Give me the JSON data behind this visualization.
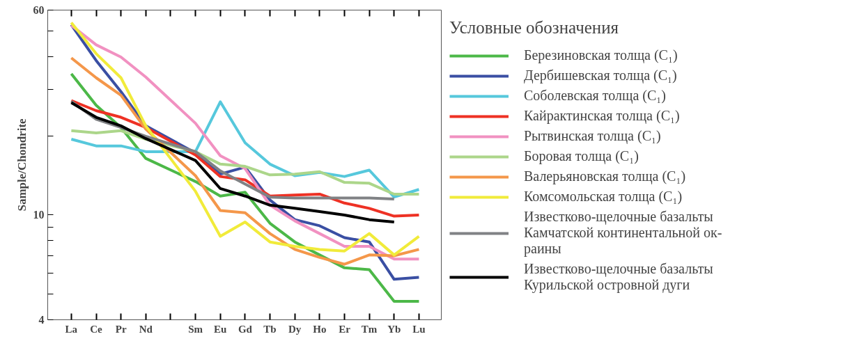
{
  "chart_data": {
    "type": "line",
    "ylabel": "Sample/Chondrite",
    "legend_title": "Условные обозначения",
    "legend": "right",
    "log": "y",
    "grid": false,
    "categories": [
      "La",
      "Ce",
      "Pr",
      "Nd",
      null,
      "Sm",
      "Eu",
      "Gd",
      "Tb",
      "Dy",
      "Ho",
      "Er",
      "Tm",
      "Yb",
      "Lu"
    ],
    "ylim": [
      4,
      60
    ],
    "yticks": [
      4,
      {
        "value": 5,
        "label": null
      },
      {
        "value": 6,
        "label": null
      },
      {
        "value": 7,
        "label": null
      },
      {
        "value": 8,
        "label": null
      },
      {
        "value": 9,
        "label": null
      },
      10,
      {
        "value": 20,
        "label": null
      },
      {
        "value": 30,
        "label": null
      },
      {
        "value": 40,
        "label": null
      },
      {
        "value": 50,
        "label": null
      },
      60
    ],
    "series": [
      {
        "name": "Березиновская толща (C₁)",
        "color": "#4cb848",
        "values": [
          34.4,
          26.1,
          21.5,
          16.4,
          null,
          13.4,
          11.8,
          12.2,
          9.3,
          7.9,
          7.05,
          6.3,
          6.2,
          4.7,
          4.7
        ]
      },
      {
        "name": "Дербишевская толща (C₁)",
        "color": "#3a4fa3",
        "values": [
          52.8,
          38.6,
          29.4,
          21.8,
          null,
          17.2,
          14.3,
          15.2,
          11.4,
          9.6,
          9.1,
          8.2,
          7.9,
          5.7,
          5.8
        ]
      },
      {
        "name": "Соболевская толща (C₁)",
        "color": "#56c8dc",
        "values": [
          19.4,
          18.3,
          18.3,
          17.4,
          null,
          17.4,
          26.9,
          18.8,
          15.6,
          14.1,
          14.5,
          14.0,
          14.8,
          11.7,
          12.5
        ]
      },
      {
        "name": "Кайрактинская толща (C₁)",
        "color": "#ee3124",
        "values": [
          27.2,
          24.9,
          23.5,
          21.5,
          null,
          16.9,
          14.0,
          13.6,
          11.8,
          11.9,
          12.0,
          11.1,
          10.6,
          9.9,
          10.0
        ]
      },
      {
        "name": "Рытвинская толща (C₁)",
        "color": "#f191c1",
        "values": [
          52.5,
          44.3,
          39.8,
          33.4,
          null,
          22.3,
          16.8,
          15.0,
          10.9,
          9.5,
          8.5,
          7.6,
          7.6,
          6.8,
          6.8
        ]
      },
      {
        "name": "Боровая толща (C₁)",
        "color": "#acd68a",
        "values": [
          20.9,
          20.5,
          20.9,
          19.4,
          null,
          17.4,
          15.6,
          15.3,
          14.2,
          14.3,
          14.6,
          13.3,
          13.2,
          12.0,
          12.0
        ]
      },
      {
        "name": "Валерьяновская толща (C₁)",
        "color": "#f4974a",
        "values": [
          39.5,
          33.2,
          28.5,
          21.2,
          null,
          14.1,
          10.4,
          10.2,
          8.5,
          7.4,
          6.9,
          6.5,
          7.05,
          7.0,
          7.4
        ]
      },
      {
        "name": "Комсомольская толща (C₁)",
        "color": "#f1eb3a",
        "values": [
          53.8,
          41.0,
          33.2,
          21.8,
          null,
          12.3,
          8.3,
          9.4,
          7.9,
          7.6,
          7.4,
          7.3,
          8.5,
          7.05,
          8.3
        ]
      },
      {
        "name": "Известково-щелочные базальты\nКамчатской континентальной ок-\nраины",
        "color": "#808285",
        "values": [
          27.0,
          23.1,
          21.5,
          19.9,
          null,
          17.4,
          14.7,
          13.1,
          11.7,
          11.6,
          11.6,
          11.6,
          11.6,
          11.5,
          null
        ]
      },
      {
        "name": "Известково-щелочные базальты\nКурильской островной дуги",
        "color": "#000000",
        "values": [
          26.7,
          23.5,
          21.8,
          19.5,
          null,
          16.1,
          12.6,
          11.8,
          10.9,
          10.6,
          10.3,
          10.0,
          9.6,
          9.4,
          null
        ]
      }
    ]
  }
}
